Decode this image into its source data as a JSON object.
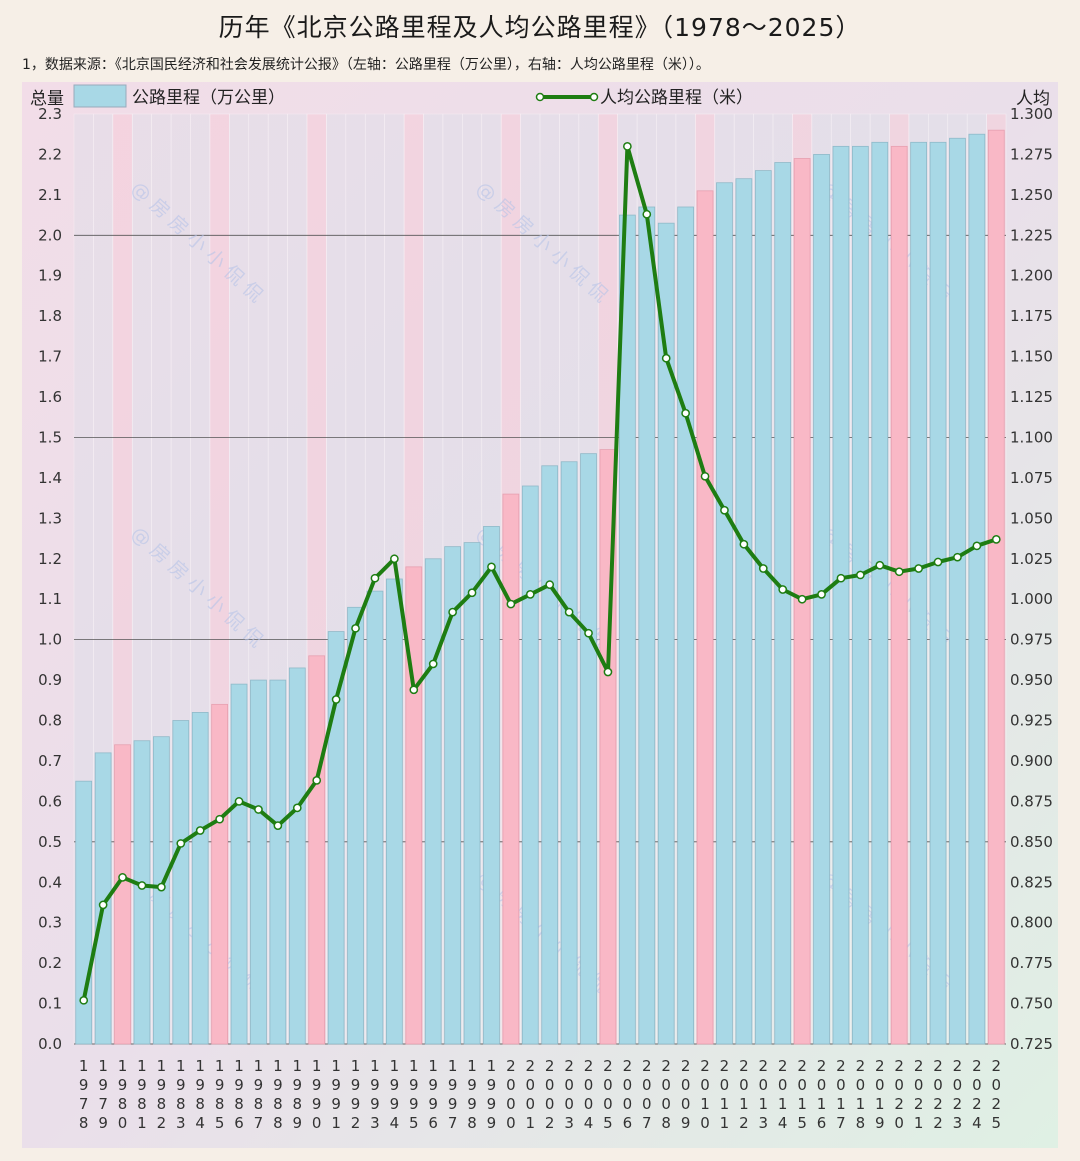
{
  "title": "历年《北京公路里程及人均公路里程》（1978～2025）",
  "note": "1，数据来源：《北京国民经济和社会发展统计公报》（左轴：公路里程（万公里），右轴：人均公路里程（米））。",
  "watermark": "@房房小小侃侃",
  "colors": {
    "bar": "#a8d8e6",
    "bar_highlight": "#f9b8c6",
    "line": "#1e7d12",
    "marker_fill": "#ffffff"
  },
  "chart_data": {
    "type": "bar",
    "x": [
      "1978",
      "1979",
      "1980",
      "1981",
      "1982",
      "1983",
      "1984",
      "1985",
      "1986",
      "1987",
      "1988",
      "1989",
      "1990",
      "1991",
      "1992",
      "1993",
      "1994",
      "1995",
      "1996",
      "1997",
      "1998",
      "1999",
      "2000",
      "2001",
      "2002",
      "2003",
      "2004",
      "2005",
      "2006",
      "2007",
      "2008",
      "2009",
      "2010",
      "2011",
      "2012",
      "2013",
      "2014",
      "2015",
      "2016",
      "2017",
      "2018",
      "2019",
      "2020",
      "2021",
      "2022",
      "2023",
      "2024",
      "2025"
    ],
    "highlight_years": [
      "1980",
      "1985",
      "1990",
      "1995",
      "2000",
      "2005",
      "2010",
      "2015",
      "2020",
      "2025"
    ],
    "left_axis": {
      "label": "总量",
      "ylim": [
        0,
        2.3
      ],
      "ticks": [
        "0.0",
        "0.1",
        "0.2",
        "0.3",
        "0.4",
        "0.5",
        "0.6",
        "0.7",
        "0.8",
        "0.9",
        "1.0",
        "1.1",
        "1.2",
        "1.3",
        "1.4",
        "1.5",
        "1.6",
        "1.7",
        "1.8",
        "1.9",
        "2.0",
        "2.1",
        "2.2",
        "2.3"
      ]
    },
    "right_axis": {
      "label": "人均",
      "ylim": [
        0.725,
        1.3
      ],
      "ticks": [
        "0.725",
        "0.750",
        "0.775",
        "0.800",
        "0.825",
        "0.850",
        "0.875",
        "0.900",
        "0.925",
        "0.950",
        "0.975",
        "1.000",
        "1.025",
        "1.050",
        "1.075",
        "1.100",
        "1.125",
        "1.150",
        "1.175",
        "1.200",
        "1.225",
        "1.250",
        "1.275",
        "1.300"
      ]
    },
    "grid": "horizontal every 0.5 on left axis",
    "legend_position": "top",
    "series": [
      {
        "name": "公路里程（万公里）",
        "type": "bar",
        "axis": "left",
        "values": [
          0.65,
          0.72,
          0.74,
          0.75,
          0.76,
          0.8,
          0.82,
          0.84,
          0.89,
          0.9,
          0.9,
          0.93,
          0.96,
          1.02,
          1.08,
          1.12,
          1.15,
          1.18,
          1.2,
          1.23,
          1.24,
          1.28,
          1.36,
          1.38,
          1.43,
          1.44,
          1.46,
          1.47,
          2.05,
          2.07,
          2.03,
          2.07,
          2.11,
          2.13,
          2.14,
          2.16,
          2.18,
          2.19,
          2.2,
          2.22,
          2.22,
          2.23,
          2.22,
          2.23,
          2.23,
          2.24,
          2.25,
          2.26
        ]
      },
      {
        "name": "人均公路里程（米）",
        "type": "line",
        "axis": "right",
        "values": [
          0.752,
          0.811,
          0.828,
          0.823,
          0.822,
          0.849,
          0.857,
          0.864,
          0.875,
          0.87,
          0.86,
          0.871,
          0.888,
          0.938,
          0.982,
          1.013,
          1.025,
          0.944,
          0.96,
          0.992,
          1.004,
          1.02,
          0.997,
          1.003,
          1.009,
          0.992,
          0.979,
          0.955,
          1.28,
          1.238,
          1.149,
          1.115,
          1.076,
          1.055,
          1.034,
          1.019,
          1.006,
          1.0,
          1.003,
          1.013,
          1.015,
          1.021,
          1.017,
          1.019,
          1.023,
          1.026,
          1.033,
          1.037
        ]
      }
    ]
  }
}
